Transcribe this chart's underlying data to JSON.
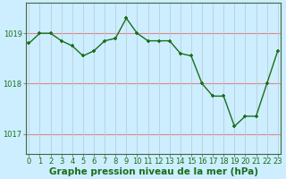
{
  "x": [
    0,
    1,
    2,
    3,
    4,
    5,
    6,
    7,
    8,
    9,
    10,
    11,
    12,
    13,
    14,
    15,
    16,
    17,
    18,
    19,
    20,
    21,
    22,
    23
  ],
  "y": [
    1018.8,
    1019.0,
    1019.0,
    1018.85,
    1018.75,
    1018.55,
    1018.65,
    1018.85,
    1018.9,
    1019.3,
    1019.0,
    1018.85,
    1018.85,
    1018.85,
    1018.6,
    1018.55,
    1018.0,
    1017.75,
    1017.75,
    1017.15,
    1017.35,
    1017.35,
    1018.0,
    1018.65
  ],
  "line_color": "#1a6e1a",
  "marker": "+",
  "marker_size": 3.5,
  "bg_color": "#cceeff",
  "grid_h_color": "#dd8888",
  "grid_v_color": "#bbccdd",
  "yticks": [
    1017,
    1018,
    1019
  ],
  "ylim": [
    1016.6,
    1019.6
  ],
  "xlim": [
    -0.3,
    23.3
  ],
  "xlabel": "Graphe pression niveau de la mer (hPa)",
  "xlabel_color": "#1a6e1a",
  "xlabel_fontsize": 7.5,
  "tick_color": "#1a6e1a",
  "tick_fontsize": 6,
  "line_width": 1.0,
  "spine_color": "#446644",
  "fig_bg": "#cceeff"
}
